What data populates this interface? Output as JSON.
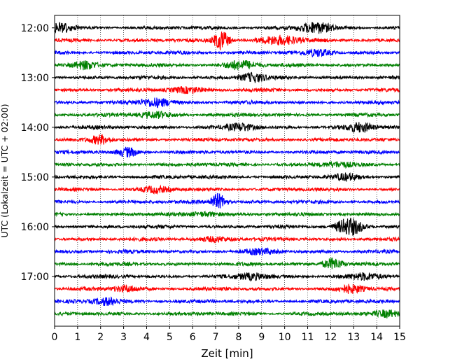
{
  "chart_data": {
    "type": "line",
    "title": "",
    "xlabel": "Zeit  [min]",
    "ylabel": "UTC (Lokalzeit = UTC + 02:00)",
    "xlim": [
      0,
      15
    ],
    "x_ticks": [
      "0",
      "1",
      "2",
      "3",
      "4",
      "5",
      "6",
      "7",
      "8",
      "9",
      "10",
      "11",
      "12",
      "13",
      "14",
      "15"
    ],
    "y_ticks": [
      "12:00",
      "13:00",
      "14:00",
      "15:00",
      "16:00",
      "17:00"
    ],
    "ylim_minutes_after_1200": [
      -15,
      360
    ],
    "trace_interval_minutes": 15,
    "grid": "vertical dotted",
    "colors": [
      "#000000",
      "#ff0000",
      "#0000ff",
      "#008000"
    ],
    "traces": [
      {
        "start": "12:00",
        "color": "#000000",
        "events": [
          [
            0.2,
            6,
            0.4
          ],
          [
            11.3,
            7,
            0.5
          ]
        ]
      },
      {
        "start": "12:15",
        "color": "#ff0000",
        "events": [
          [
            7.25,
            13,
            0.25
          ],
          [
            9.8,
            6,
            0.6
          ]
        ]
      },
      {
        "start": "12:30",
        "color": "#0000ff",
        "events": [
          [
            11.5,
            4,
            0.4
          ]
        ]
      },
      {
        "start": "12:45",
        "color": "#008000",
        "events": [
          [
            1.3,
            6,
            0.4
          ],
          [
            8.1,
            6,
            0.5
          ]
        ]
      },
      {
        "start": "13:00",
        "color": "#000000",
        "events": [
          [
            8.6,
            6,
            0.4
          ]
        ]
      },
      {
        "start": "13:15",
        "color": "#ff0000",
        "events": [
          [
            5.7,
            4,
            0.5
          ]
        ]
      },
      {
        "start": "13:30",
        "color": "#0000ff",
        "events": [
          [
            4.4,
            6,
            0.5
          ]
        ]
      },
      {
        "start": "13:45",
        "color": "#008000",
        "events": [
          [
            4.4,
            4,
            0.5
          ]
        ]
      },
      {
        "start": "14:00",
        "color": "#000000",
        "events": [
          [
            8.1,
            5,
            0.4
          ],
          [
            13.3,
            6,
            0.4
          ]
        ]
      },
      {
        "start": "14:15",
        "color": "#ff0000",
        "events": [
          [
            2.0,
            6,
            0.3
          ]
        ]
      },
      {
        "start": "14:30",
        "color": "#0000ff",
        "events": [
          [
            3.2,
            6,
            0.3
          ]
        ]
      },
      {
        "start": "14:45",
        "color": "#008000",
        "events": [
          [
            12.3,
            3,
            0.5
          ]
        ]
      },
      {
        "start": "15:00",
        "color": "#000000",
        "events": [
          [
            12.7,
            4,
            0.4
          ]
        ]
      },
      {
        "start": "15:15",
        "color": "#ff0000",
        "events": [
          [
            4.4,
            4,
            0.4
          ]
        ]
      },
      {
        "start": "15:30",
        "color": "#0000ff",
        "events": [
          [
            7.1,
            11,
            0.25
          ]
        ]
      },
      {
        "start": "15:45",
        "color": "#008000",
        "events": [
          [
            6.6,
            3,
            0.5
          ]
        ]
      },
      {
        "start": "16:00",
        "color": "#000000",
        "events": [
          [
            12.8,
            12,
            0.4
          ]
        ]
      },
      {
        "start": "16:15",
        "color": "#ff0000",
        "events": [
          [
            7.0,
            3,
            0.5
          ]
        ]
      },
      {
        "start": "16:30",
        "color": "#0000ff",
        "events": [
          [
            9.0,
            3,
            0.5
          ]
        ]
      },
      {
        "start": "16:45",
        "color": "#008000",
        "events": [
          [
            12.1,
            8,
            0.3
          ]
        ]
      },
      {
        "start": "17:00",
        "color": "#000000",
        "events": [
          [
            8.6,
            4,
            0.5
          ],
          [
            13.5,
            4,
            0.5
          ]
        ]
      },
      {
        "start": "17:15",
        "color": "#ff0000",
        "events": [
          [
            3.1,
            4,
            0.4
          ],
          [
            12.9,
            5,
            0.4
          ]
        ]
      },
      {
        "start": "17:30",
        "color": "#0000ff",
        "events": [
          [
            2.3,
            5,
            0.4
          ]
        ]
      },
      {
        "start": "17:45",
        "color": "#008000",
        "events": [
          [
            14.5,
            5,
            0.4
          ]
        ]
      }
    ]
  }
}
